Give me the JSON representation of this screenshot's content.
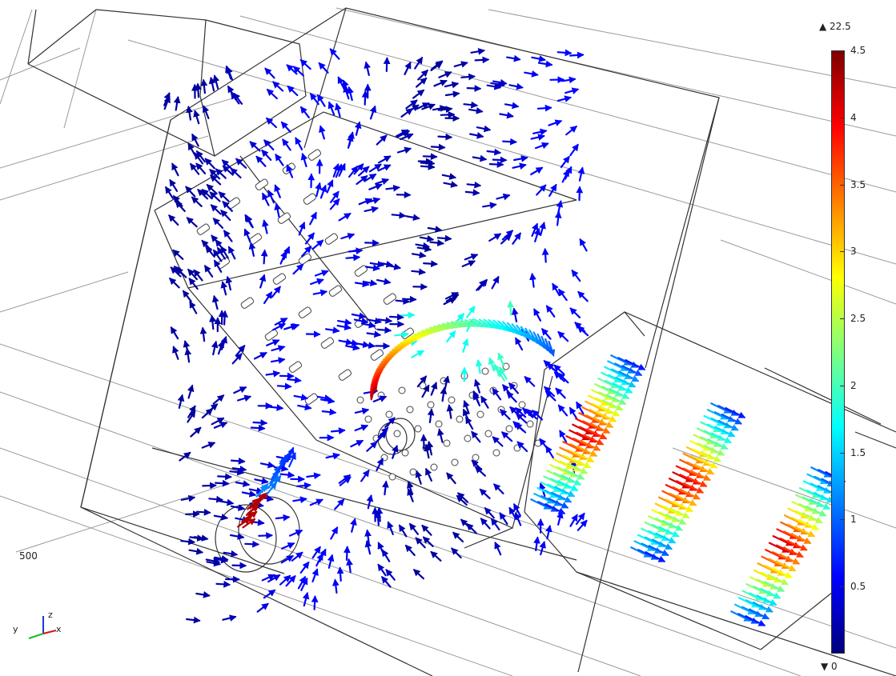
{
  "legend": {
    "max_label": "▲ 22.5",
    "min_label": "▼ 0",
    "colors": [
      "#00007f",
      "#0000ff",
      "#007fff",
      "#00ffff",
      "#7fff7f",
      "#ffff00",
      "#ff7f00",
      "#ff0000",
      "#7f0000"
    ],
    "ticks": [
      {
        "value": 4.5,
        "label": "4.5"
      },
      {
        "value": 4,
        "label": "4"
      },
      {
        "value": 3.5,
        "label": "3.5"
      },
      {
        "value": 3,
        "label": "3"
      },
      {
        "value": 2.5,
        "label": "2.5"
      },
      {
        "value": 2,
        "label": "2"
      },
      {
        "value": 1.5,
        "label": "1.5"
      },
      {
        "value": 1,
        "label": "1"
      },
      {
        "value": 0.5,
        "label": "0.5"
      }
    ],
    "range": [
      0,
      4.5
    ]
  },
  "axis_label": "500",
  "triad": {
    "y": "y",
    "z": "z",
    "x": "x"
  }
}
